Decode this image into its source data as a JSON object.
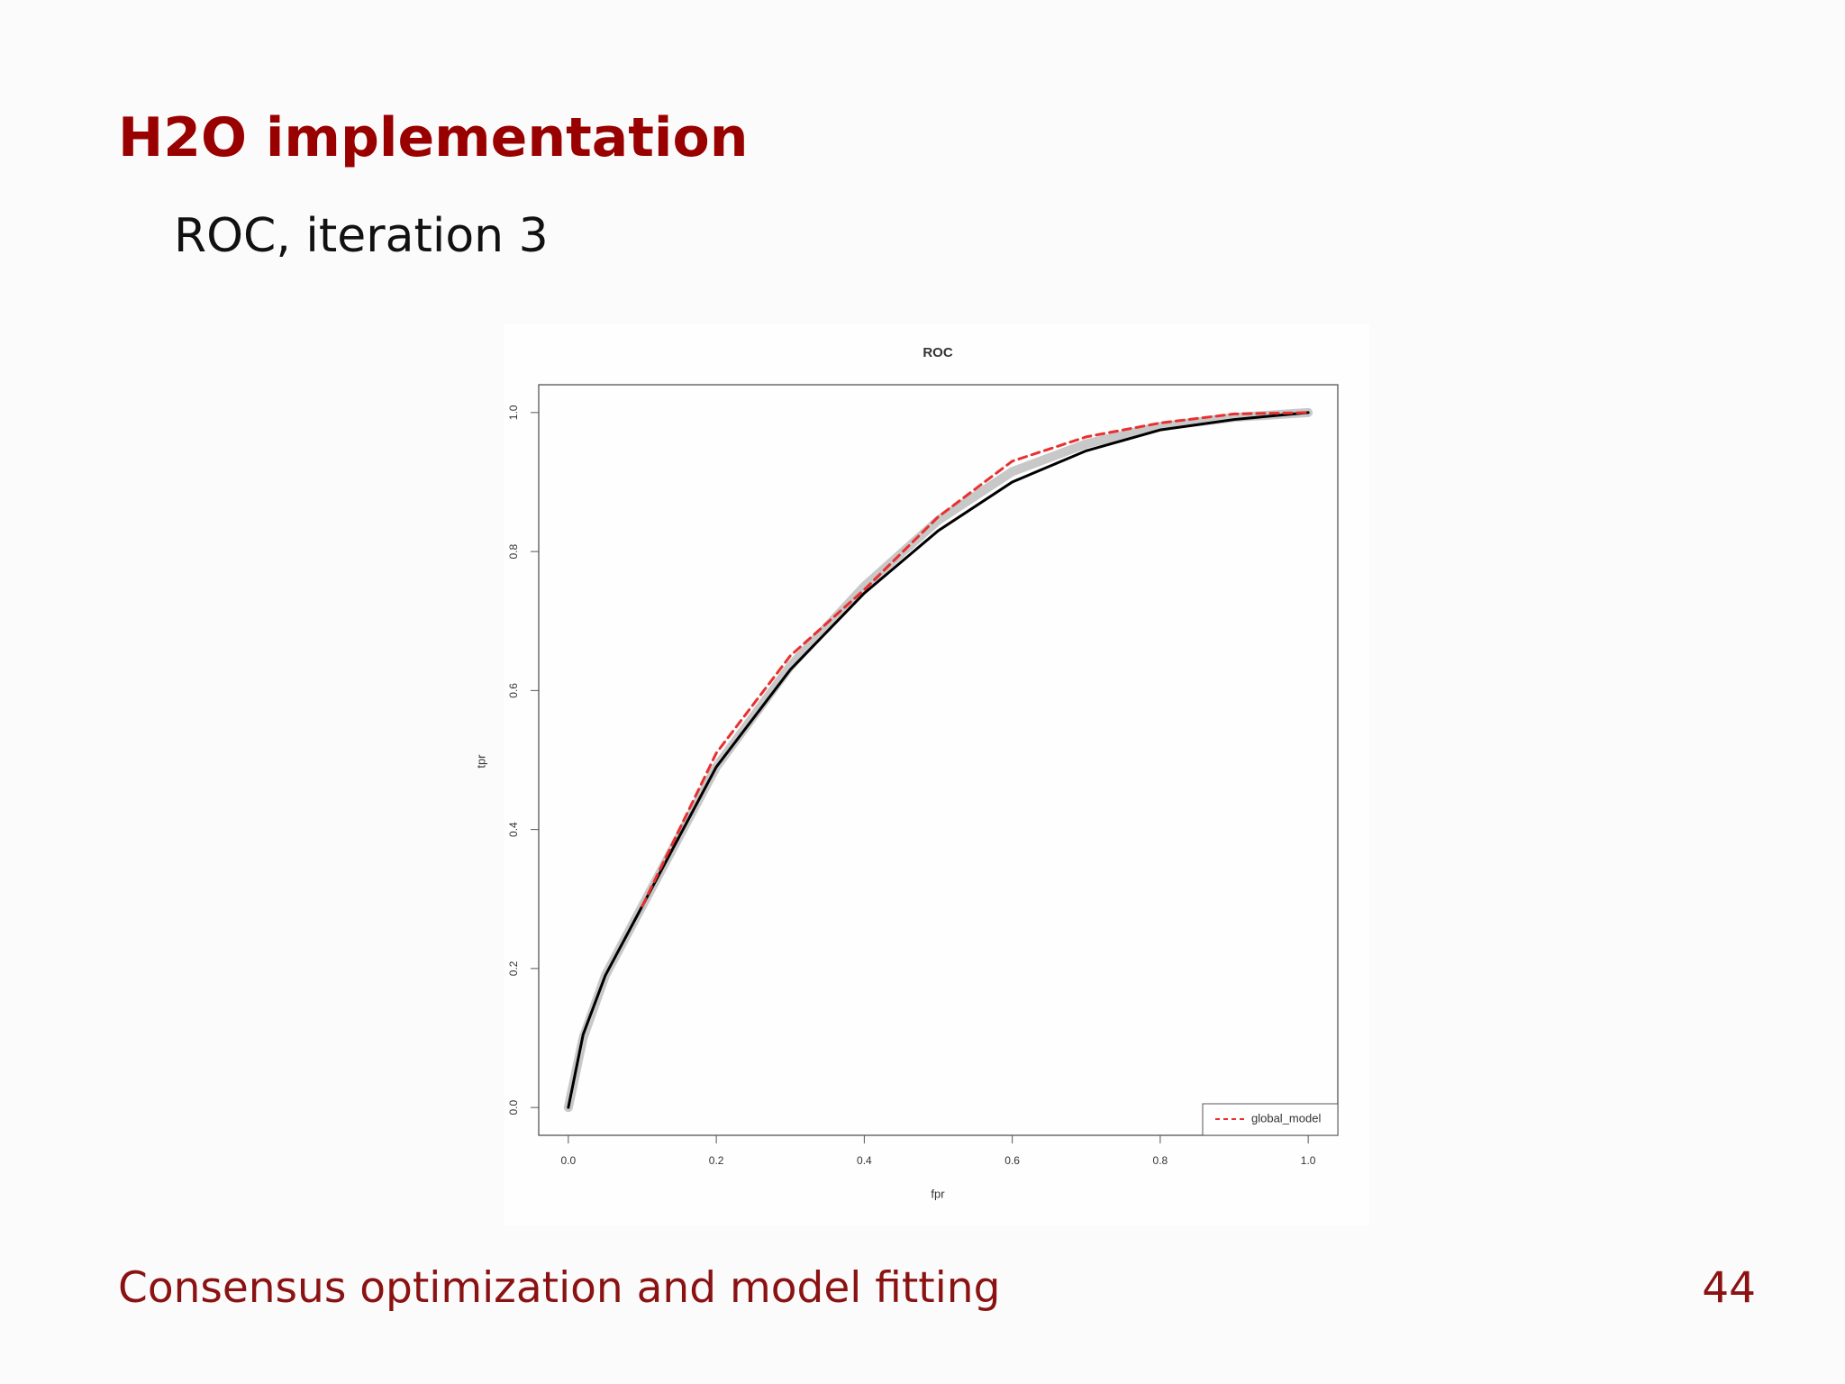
{
  "header": {
    "title": "H2O implementation",
    "subtitle": "ROC, iteration 3"
  },
  "footer": {
    "text": "Consensus optimization and model fitting",
    "page": "44"
  },
  "chart_data": {
    "type": "line",
    "title": "ROC",
    "x_label": "fpr",
    "y_label": "tpr",
    "x": [
      0,
      0.02,
      0.05,
      0.1,
      0.2,
      0.3,
      0.4,
      0.5,
      0.6,
      0.7,
      0.8,
      0.9,
      1.0
    ],
    "series": [
      {
        "color": "#c8c8c8",
        "values": [
          0,
          0.1,
          0.19,
          0.29,
          0.49,
          0.635,
          0.75,
          0.845,
          0.915,
          0.955,
          0.98,
          0.993,
          1.0
        ]
      },
      {
        "color": "#000000",
        "values": [
          0,
          0.105,
          0.19,
          0.29,
          0.49,
          0.63,
          0.74,
          0.83,
          0.9,
          0.945,
          0.975,
          0.99,
          1.0
        ]
      },
      {
        "name": "global_model",
        "color": "#e8312f",
        "dashed": true,
        "values": [
          null,
          null,
          null,
          0.29,
          0.51,
          0.65,
          0.745,
          0.85,
          0.93,
          0.965,
          0.985,
          0.998,
          1.0
        ]
      }
    ],
    "xlim": [
      -0.04,
      1.04
    ],
    "ylim": [
      -0.04,
      1.04
    ],
    "xticks": [
      {
        "value": 0,
        "label": "0.0"
      },
      0.2,
      0.4,
      0.6,
      0.8,
      {
        "value": 1,
        "label": "1.0"
      }
    ],
    "yticks": [
      {
        "value": 0,
        "label": "0.0"
      },
      0.2,
      0.4,
      0.6,
      0.8,
      {
        "value": 1,
        "label": "1.0"
      }
    ],
    "legend": "bottom-right"
  }
}
